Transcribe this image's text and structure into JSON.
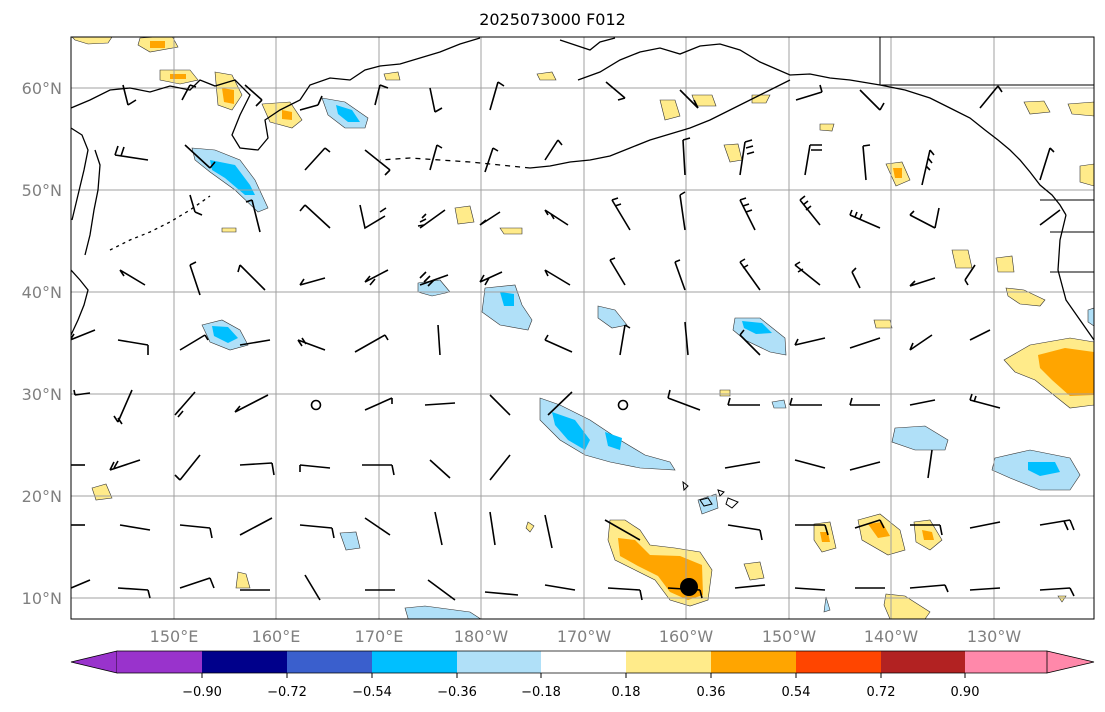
{
  "title": "2025073000 F012",
  "map": {
    "lat_labels": [
      "10°N",
      "20°N",
      "30°N",
      "40°N",
      "50°N",
      "60°N"
    ],
    "lat_values": [
      10,
      20,
      30,
      40,
      50,
      60
    ],
    "lon_labels": [
      "150°E",
      "160°E",
      "170°E",
      "180°W",
      "170°W",
      "160°W",
      "150°W",
      "140°W",
      "130°W"
    ],
    "lon_values": [
      150,
      160,
      170,
      180,
      190,
      200,
      210,
      220,
      230
    ],
    "lat_range": [
      8,
      65
    ],
    "lon_range": [
      140,
      240
    ],
    "gridlines": true,
    "features": [
      "coastlines",
      "wind-barbs",
      "shaded-anomaly-contours",
      "storm-center-marker"
    ]
  },
  "colorbar": {
    "labels": [
      "−0.90",
      "−0.72",
      "−0.54",
      "−0.36",
      "−0.18",
      "0.18",
      "0.36",
      "0.54",
      "0.72",
      "0.90"
    ],
    "colors": [
      "#9933cc",
      "#00008b",
      "#3a5fcd",
      "#00bfff",
      "#b0e0f8",
      "#ffffff",
      "#ffeb8a",
      "#ffa500",
      "#ff4500",
      "#b22222",
      "#ff88aa"
    ],
    "extend": "both"
  },
  "colors": {
    "positive_light": "#ffeb8a",
    "positive_mid": "#ffa500",
    "negative_light": "#b0e0f8",
    "negative_mid": "#00bfff",
    "grid": "#a0a0a0",
    "axis_label": "#808080"
  }
}
